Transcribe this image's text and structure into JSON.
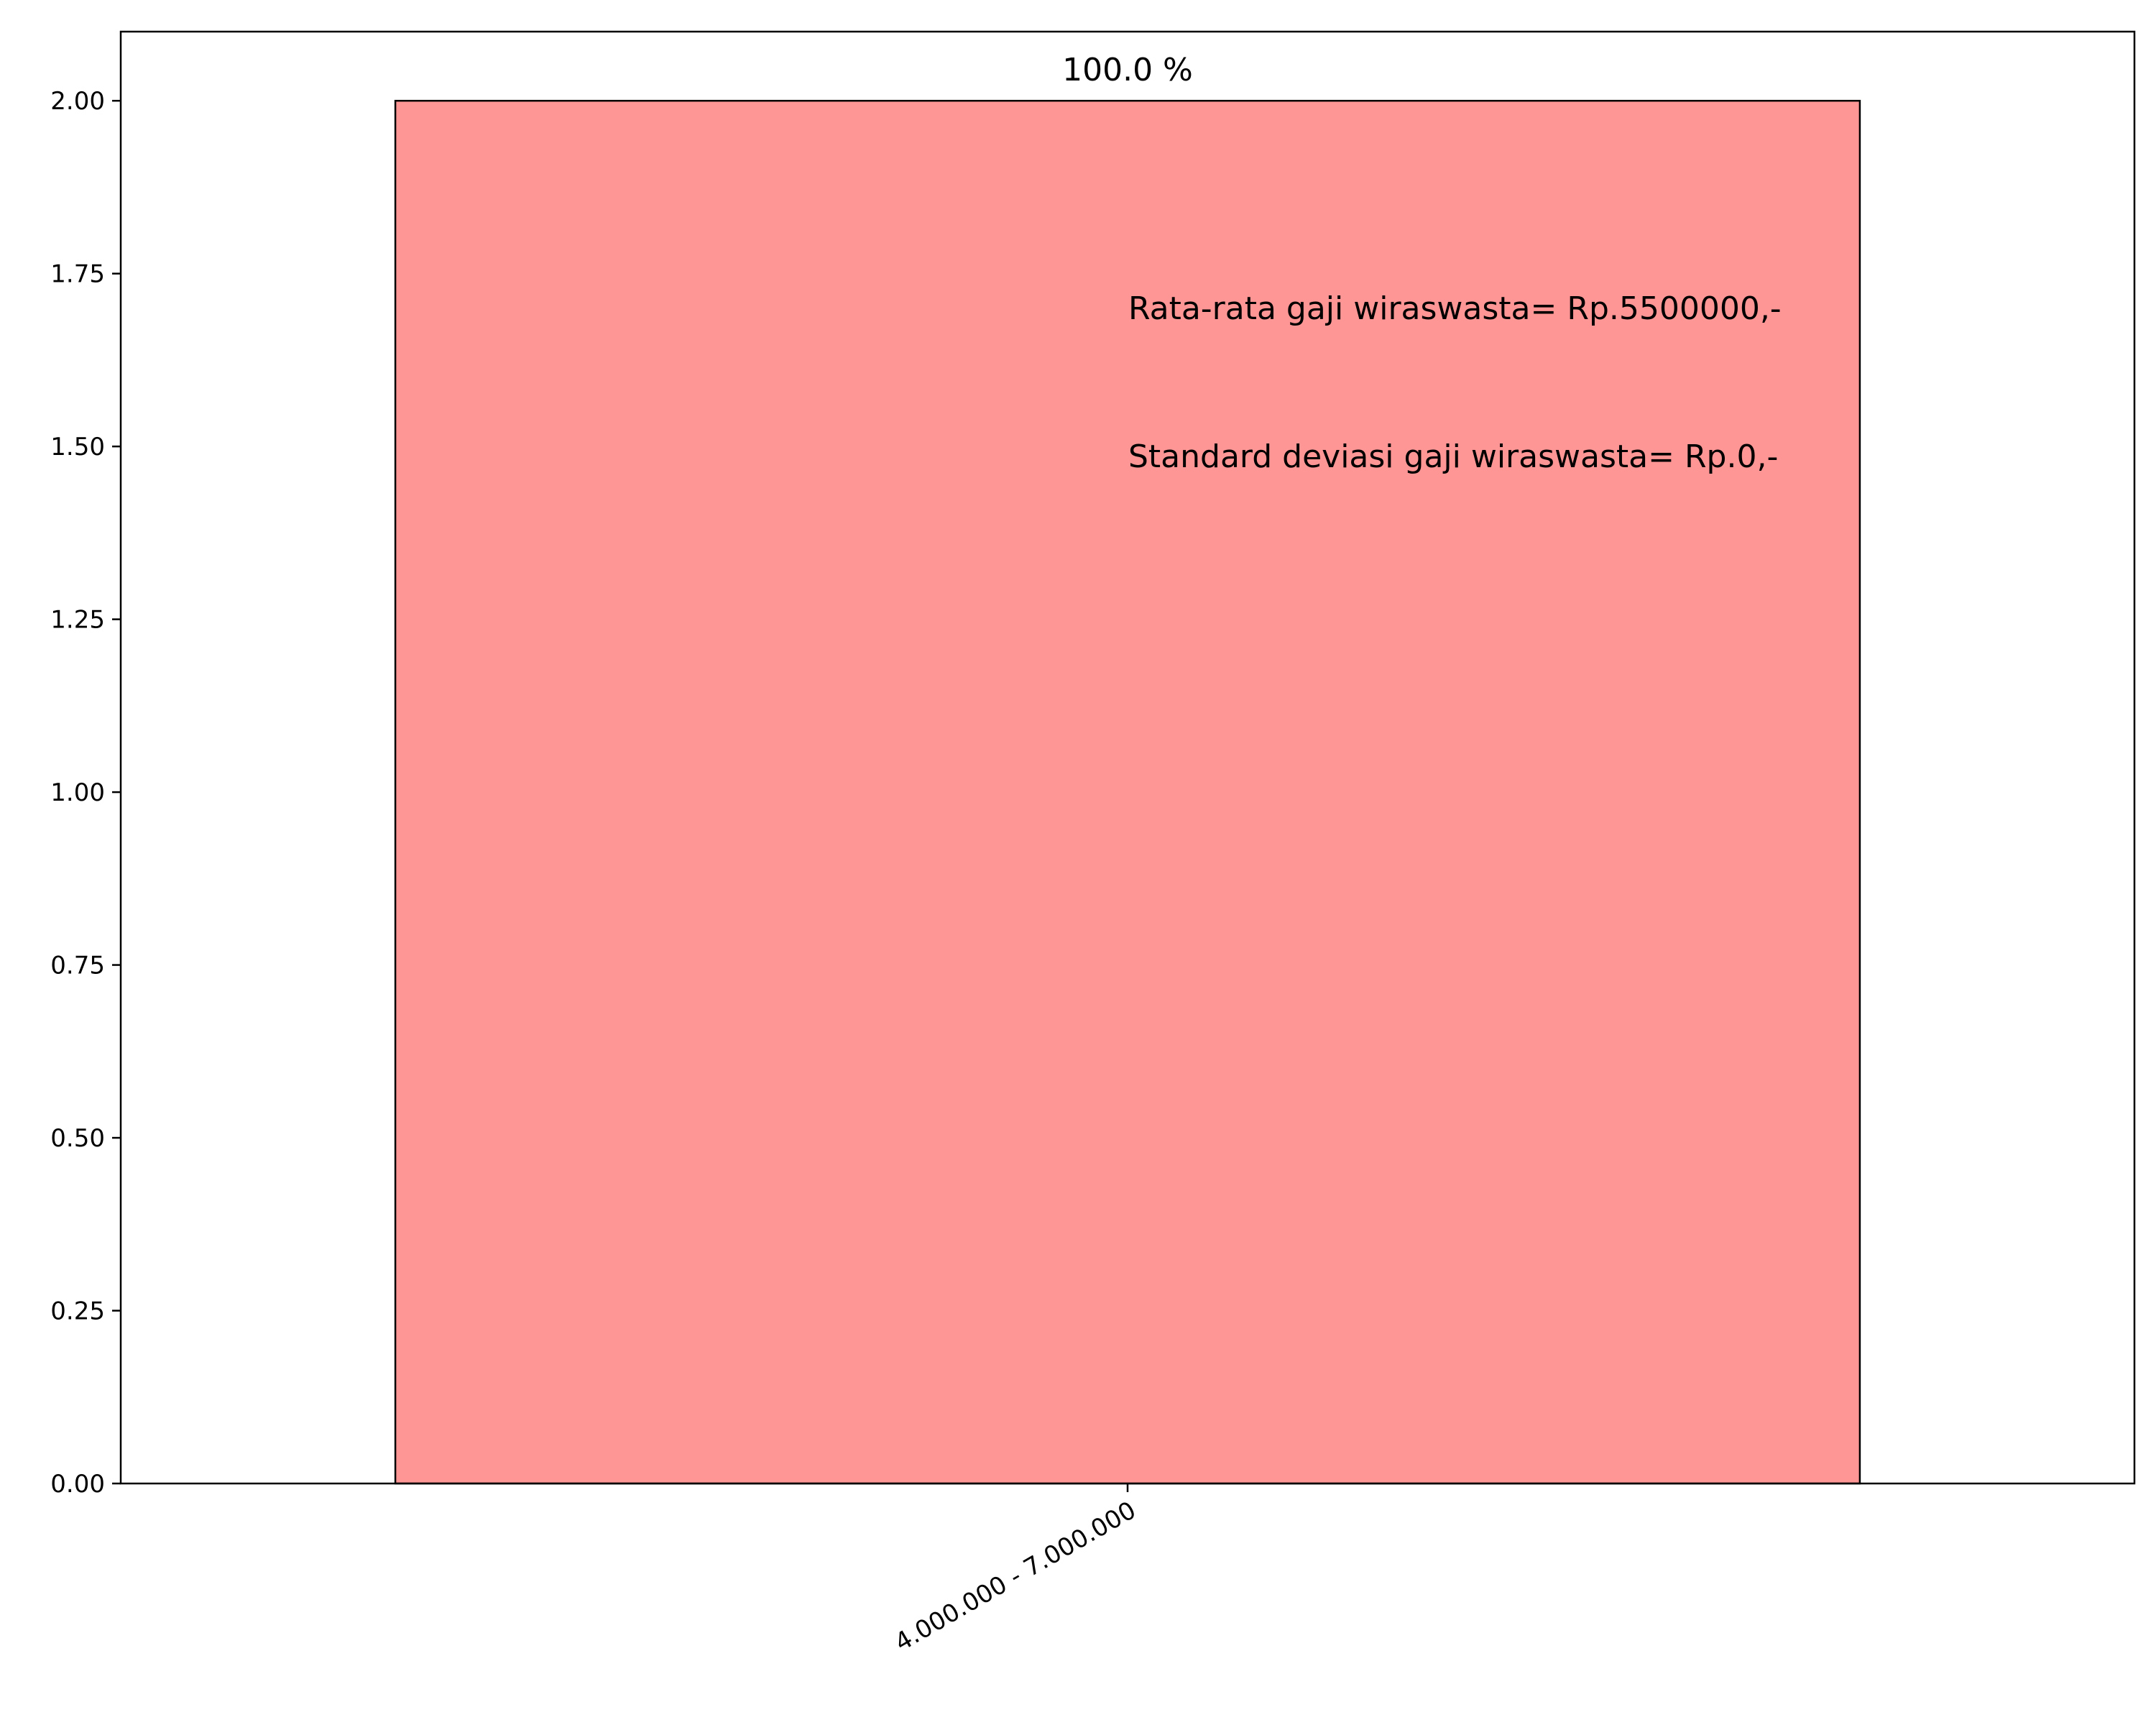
{
  "chart_data": {
    "type": "bar",
    "title": "",
    "xlabel": "",
    "ylabel": "",
    "categories": [
      "4.000.000 - 7.000.000"
    ],
    "values": [
      2
    ],
    "ylim": [
      0,
      2.1
    ],
    "yticks": [
      0.0,
      0.25,
      0.5,
      0.75,
      1.0,
      1.25,
      1.5,
      1.75,
      2.0
    ],
    "ytick_labels": [
      "0.00",
      "0.25",
      "0.50",
      "0.75",
      "1.00",
      "1.25",
      "1.50",
      "1.75",
      "2.00"
    ],
    "grid": false,
    "bar_color": "#ff9696",
    "bar_edge_color": "#000000",
    "bar_labels": [
      "100.0 %"
    ],
    "annotations": [
      "Rata-rata gaji wiraswasta= Rp.5500000,-",
      "Standard deviasi gaji wiraswasta= Rp.0,-"
    ]
  }
}
